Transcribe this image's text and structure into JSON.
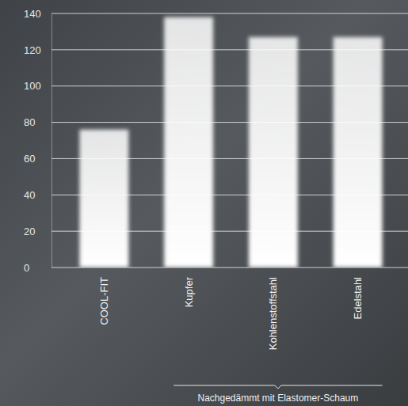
{
  "chart_data": {
    "type": "bar",
    "categories": [
      "COOL-FIT",
      "Kupfer",
      "Kohlenstoffstahl",
      "Edelstahl"
    ],
    "values": [
      76,
      138,
      127,
      127
    ],
    "color": "#ffffff",
    "ylim": [
      0,
      140
    ],
    "yticks": [
      0,
      20,
      40,
      60,
      80,
      100,
      120,
      140
    ],
    "grid": true,
    "annotations": [
      {
        "text": "Nachgedämmt mit Elastomer-Schaum",
        "span": [
          "Kupfer",
          "Edelstahl"
        ]
      }
    ]
  }
}
